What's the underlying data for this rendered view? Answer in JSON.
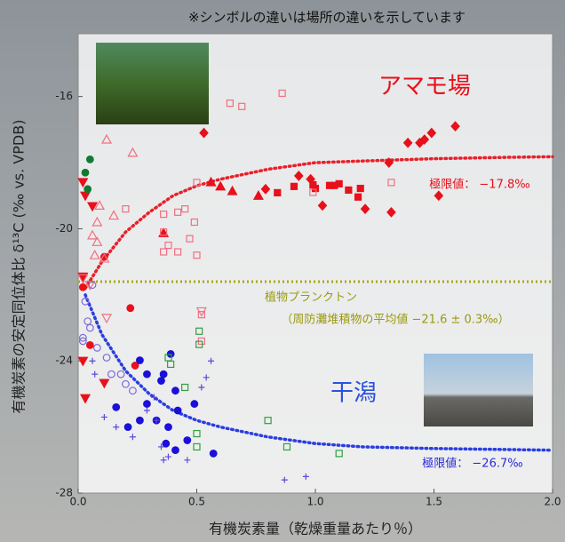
{
  "chart_data": {
    "type": "scatter",
    "note": "※シンボルの違いは場所の違いを示しています",
    "x_label": "有機炭素量（乾燥重量あたり％）",
    "y_label": "有機炭素の安定同位体比 δ¹³C (‰ vs. VPDB)",
    "xlim": [
      0,
      2.0
    ],
    "ylim": [
      -28,
      -14.1
    ],
    "xticks": [
      {
        "value": 0,
        "label": "0.0"
      },
      0.5,
      {
        "value": 1,
        "label": "1.0"
      },
      1.5,
      {
        "value": 2,
        "label": "2.0"
      }
    ],
    "yticks": [
      -28,
      -24,
      -20,
      -16
    ],
    "annotations": {
      "seagrass": "アマモ場",
      "tidal_flat": "干潟",
      "seagrass_limit": "極限値： −17.8‰",
      "flat_limit": "極限値： −26.7‰",
      "plankton": "植物プランクトン",
      "plankton_detail": "（周防灘堆積物の平均値 −21.6 ± 0.3‰）"
    },
    "reference_line": {
      "y": -21.6,
      "color": "#a8a818"
    },
    "fits": [
      {
        "color": "#e8202a",
        "x": [
          0.03,
          0.1,
          0.2,
          0.3,
          0.4,
          0.5,
          0.6,
          0.8,
          1.0,
          1.2,
          1.5,
          1.8,
          2.0
        ],
        "values": [
          -21.8,
          -21.0,
          -20.1,
          -19.5,
          -19.0,
          -18.7,
          -18.5,
          -18.2,
          -18.0,
          -17.95,
          -17.88,
          -17.84,
          -17.82
        ]
      },
      {
        "color": "#2a3ee0",
        "x": [
          0.03,
          0.1,
          0.2,
          0.3,
          0.4,
          0.5,
          0.6,
          0.8,
          1.0,
          1.2,
          1.5,
          1.8,
          2.0
        ],
        "values": [
          -22.0,
          -23.2,
          -24.3,
          -25.0,
          -25.5,
          -25.8,
          -26.0,
          -26.3,
          -26.5,
          -26.6,
          -26.65,
          -26.68,
          -26.7
        ]
      }
    ],
    "series": [
      {
        "color": "#e8101a",
        "marker": "diamond",
        "filled": true,
        "x": [
          1.59,
          1.49,
          1.44,
          1.39,
          1.46,
          1.31,
          1.21,
          1.32,
          1.52,
          1.03,
          0.98,
          0.93,
          0.79,
          0.53
        ],
        "values": [
          -16.9,
          -17.1,
          -17.4,
          -17.4,
          -17.3,
          -18.0,
          -19.4,
          -19.5,
          -19.0,
          -19.3,
          -18.5,
          -18.4,
          -18.8,
          -17.1
        ]
      },
      {
        "color": "#e8101a",
        "marker": "square",
        "filled": true,
        "x": [
          1.06,
          1.08,
          1.14,
          1.19,
          1.18,
          1.1,
          0.99,
          1.0,
          0.91,
          0.84
        ],
        "values": [
          -18.69,
          -18.69,
          -18.83,
          -18.78,
          -19.04,
          -18.64,
          -18.67,
          -18.78,
          -18.72,
          -18.91
        ]
      },
      {
        "color": "#e8101a",
        "marker": "triangle",
        "filled": true,
        "x": [
          0.56,
          0.6,
          0.65,
          0.76,
          0.36
        ],
        "values": [
          -18.59,
          -18.72,
          -18.86,
          -19.0,
          -20.13
        ]
      },
      {
        "color": "#e8101a",
        "marker": "triangle-down",
        "filled": true,
        "x": [
          0.02,
          0.06,
          0.03,
          0.02,
          0.03,
          0.11,
          0.02
        ],
        "values": [
          -18.59,
          -19.32,
          -19.0,
          -24.0,
          -25.13,
          -24.67,
          -21.45
        ]
      },
      {
        "color": "#e8101a",
        "marker": "circle",
        "filled": true,
        "x": [
          0.11,
          0.22,
          0.24,
          0.02,
          0.05
        ],
        "values": [
          -20.85,
          -22.4,
          -24.14,
          -21.77,
          -23.52
        ]
      },
      {
        "color": "#f07080",
        "marker": "square",
        "filled": false,
        "x": [
          0.2,
          0.36,
          0.36,
          0.42,
          0.45,
          0.49,
          0.38,
          0.42,
          0.47,
          0.5,
          0.64,
          0.69,
          0.86,
          1.32,
          0.99,
          0.36,
          0.5,
          0.52,
          0.52
        ],
        "values": [
          -19.4,
          -19.56,
          -20.1,
          -19.5,
          -19.4,
          -19.8,
          -20.5,
          -20.7,
          -20.3,
          -18.6,
          -16.2,
          -16.3,
          -15.9,
          -18.6,
          -18.9,
          -20.7,
          -20.8,
          -22.6,
          -23.4
        ]
      },
      {
        "color": "#f07080",
        "marker": "triangle",
        "filled": false,
        "x": [
          0.12,
          0.23,
          0.15,
          0.08,
          0.11,
          0.07,
          0.06,
          0.08,
          0.09
        ],
        "values": [
          -17.3,
          -17.7,
          -19.6,
          -20.4,
          -20.9,
          -20.8,
          -20.2,
          -19.8,
          -19.3
        ]
      },
      {
        "color": "#f07080",
        "marker": "triangle-down",
        "filled": false,
        "x": [
          0.52,
          0.12,
          0.02,
          0.05
        ],
        "values": [
          -22.5,
          -22.7,
          -21.5,
          -21.7
        ]
      },
      {
        "color": "#107a30",
        "marker": "circle",
        "filled": true,
        "x": [
          0.05,
          0.03,
          0.04
        ],
        "values": [
          -17.9,
          -18.3,
          -18.8
        ]
      },
      {
        "color": "#1a10d8",
        "marker": "circle",
        "filled": true,
        "x": [
          0.16,
          0.26,
          0.29,
          0.36,
          0.41,
          0.42,
          0.49,
          0.38,
          0.37,
          0.41,
          0.46,
          0.57,
          0.35,
          0.29,
          0.26,
          0.39,
          0.21,
          0.33
        ],
        "values": [
          -25.4,
          -25.8,
          -25.3,
          -24.4,
          -24.9,
          -25.5,
          -25.3,
          -26.0,
          -26.5,
          -26.7,
          -26.4,
          -26.8,
          -24.6,
          -24.4,
          -23.98,
          -23.79,
          -26.0,
          -25.8
        ]
      },
      {
        "color": "#7a6ad8",
        "marker": "circle",
        "filled": false,
        "x": [
          0.02,
          0.04,
          0.06,
          0.03,
          0.08,
          0.12,
          0.14,
          0.18,
          0.2,
          0.23,
          0.05,
          0.02
        ],
        "values": [
          -23.3,
          -22.8,
          -21.7,
          -22.2,
          -23.6,
          -23.9,
          -24.4,
          -24.4,
          -24.7,
          -24.9,
          -23.0,
          -23.4
        ]
      },
      {
        "color": "#5a4ad8",
        "marker": "plus",
        "filled": false,
        "x": [
          0.11,
          0.16,
          0.23,
          0.29,
          0.33,
          0.35,
          0.38,
          0.56,
          0.54,
          0.52,
          0.32,
          0.36,
          0.46,
          0.87,
          0.96,
          0.06,
          0.07
        ],
        "values": [
          -25.7,
          -26.0,
          -26.3,
          -25.5,
          -25.8,
          -26.6,
          -26.9,
          -24.0,
          -24.5,
          -24.8,
          -25.1,
          -27.0,
          -27.0,
          -27.6,
          -27.5,
          -24.0,
          -24.4
        ]
      },
      {
        "color": "#30a040",
        "marker": "square",
        "filled": false,
        "x": [
          0.38,
          0.39,
          0.51,
          0.51,
          0.45,
          0.5,
          0.5,
          0.8,
          0.88,
          1.1
        ],
        "values": [
          -23.9,
          -24.1,
          -23.1,
          -23.5,
          -24.8,
          -26.2,
          -26.6,
          -25.8,
          -26.6,
          -26.8
        ]
      }
    ]
  }
}
